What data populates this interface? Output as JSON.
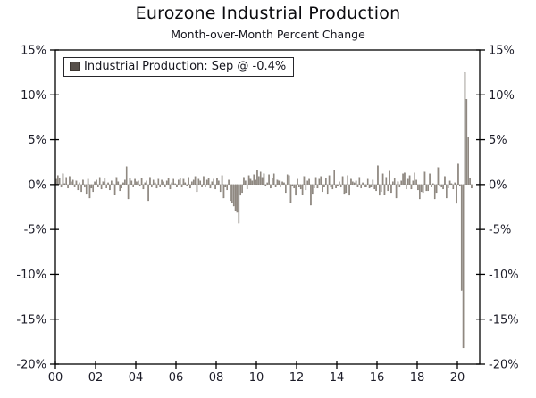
{
  "chart": {
    "title": "Eurozone Industrial Production",
    "subtitle": "Month-over-Month Percent Change"
  },
  "legend": {
    "label": "Industrial Production: Sep @ -0.4%",
    "swatch_color": "#57504a"
  },
  "chart_data": {
    "type": "bar",
    "title": "Eurozone Industrial Production",
    "subtitle": "Month-over-Month Percent Change",
    "frequency": "monthly",
    "x_start": "2000-01",
    "x_end": "2020-09",
    "ylim": [
      -20,
      15
    ],
    "yticks": [
      15,
      10,
      5,
      0,
      -5,
      -10,
      -15,
      -20
    ],
    "ytick_labels": [
      "15%",
      "10%",
      "5%",
      "0%",
      "-5%",
      "-10%",
      "-15%",
      "-20%"
    ],
    "ytick_labels_right": [
      "15%",
      "10%",
      "5%",
      "0%",
      "-5%",
      "-10%",
      "-15%",
      "-20%"
    ],
    "xticks_years": [
      2000,
      2002,
      2004,
      2006,
      2008,
      2010,
      2012,
      2014,
      2016,
      2018,
      2020
    ],
    "xtick_labels": [
      "00",
      "02",
      "04",
      "06",
      "08",
      "10",
      "12",
      "14",
      "16",
      "18",
      "20"
    ],
    "grid": false,
    "legend_position": "top-left",
    "bar_color": "#948d85",
    "bar_edge_color": "#6e675f",
    "axis_color": "#000000",
    "last_point_annotation": "Sep @ -0.4%",
    "series": [
      {
        "name": "Industrial Production",
        "values": [
          0.6,
          1.0,
          0.7,
          -0.3,
          1.2,
          0.1,
          0.8,
          -0.4,
          0.9,
          0.3,
          0.5,
          -0.2,
          0.4,
          -0.6,
          0.2,
          -0.8,
          0.5,
          -0.3,
          -1.0,
          0.6,
          -1.5,
          -0.4,
          -0.8,
          0.3,
          0.5,
          -0.2,
          0.8,
          -0.5,
          0.3,
          0.7,
          -0.4,
          0.2,
          -0.6,
          0.4,
          0.1,
          -1.1,
          0.8,
          0.3,
          -0.7,
          -0.4,
          0.2,
          0.5,
          2.0,
          -1.6,
          0.7,
          0.4,
          -0.2,
          0.6,
          0.3,
          0.4,
          -0.1,
          0.7,
          -0.5,
          0.2,
          0.4,
          -1.8,
          0.8,
          -0.3,
          0.5,
          0.2,
          -0.4,
          0.6,
          -0.2,
          0.5,
          0.3,
          -0.3,
          0.4,
          0.7,
          -0.5,
          0.2,
          0.6,
          0.1,
          -0.2,
          0.5,
          0.7,
          -0.3,
          0.6,
          0.2,
          -0.1,
          0.8,
          -0.4,
          0.3,
          0.5,
          0.9,
          -0.8,
          0.6,
          0.4,
          -0.2,
          0.9,
          -0.3,
          0.5,
          0.7,
          -0.4,
          0.3,
          0.6,
          -0.5,
          0.7,
          0.4,
          -0.8,
          1.0,
          -1.5,
          -0.2,
          -0.6,
          0.5,
          -1.8,
          -2.0,
          -2.4,
          -2.9,
          -3.1,
          -4.3,
          -1.2,
          -0.9,
          0.8,
          0.4,
          -0.5,
          1.0,
          0.6,
          0.4,
          1.1,
          0.5,
          1.6,
          0.9,
          1.4,
          0.8,
          1.2,
          -0.1,
          0.2,
          1.1,
          -0.4,
          0.7,
          1.2,
          -0.2,
          0.5,
          0.4,
          -0.3,
          0.3,
          0.2,
          -0.9,
          1.1,
          1.0,
          -2.0,
          -0.1,
          -0.4,
          -1.2,
          0.6,
          -0.2,
          -0.5,
          -1.1,
          0.9,
          -0.6,
          0.4,
          0.6,
          -2.3,
          -1.0,
          -0.4,
          0.8,
          -0.4,
          0.6,
          0.9,
          -0.8,
          -0.2,
          0.7,
          -1.0,
          1.0,
          -0.3,
          -0.5,
          1.6,
          -0.4,
          -0.1,
          0.3,
          -0.3,
          0.9,
          -1.0,
          -0.9,
          1.0,
          -1.2,
          0.6,
          0.3,
          0.2,
          0.4,
          -0.2,
          0.8,
          -0.4,
          0.2,
          -0.3,
          -0.2,
          0.6,
          -0.4,
          -0.2,
          0.5,
          -0.5,
          -0.7,
          2.1,
          -1.2,
          -0.8,
          1.2,
          -1.1,
          0.8,
          -0.7,
          1.5,
          -0.9,
          0.3,
          0.7,
          -1.5,
          0.3,
          -0.3,
          0.4,
          1.2,
          1.3,
          -0.5,
          0.6,
          1.0,
          -0.5,
          0.4,
          1.3,
          0.5,
          -0.6,
          -1.6,
          -0.8,
          -0.9,
          1.4,
          -0.7,
          -0.7,
          1.2,
          -0.2,
          0.1,
          -1.6,
          -0.9,
          1.9,
          -0.1,
          -0.3,
          -0.5,
          0.9,
          -1.5,
          -0.4,
          0.4,
          0.1,
          -0.5,
          0.2,
          -2.1,
          2.3,
          -0.1,
          -11.8,
          -18.2,
          12.5,
          9.5,
          5.3,
          0.7,
          -0.4
        ]
      }
    ]
  }
}
